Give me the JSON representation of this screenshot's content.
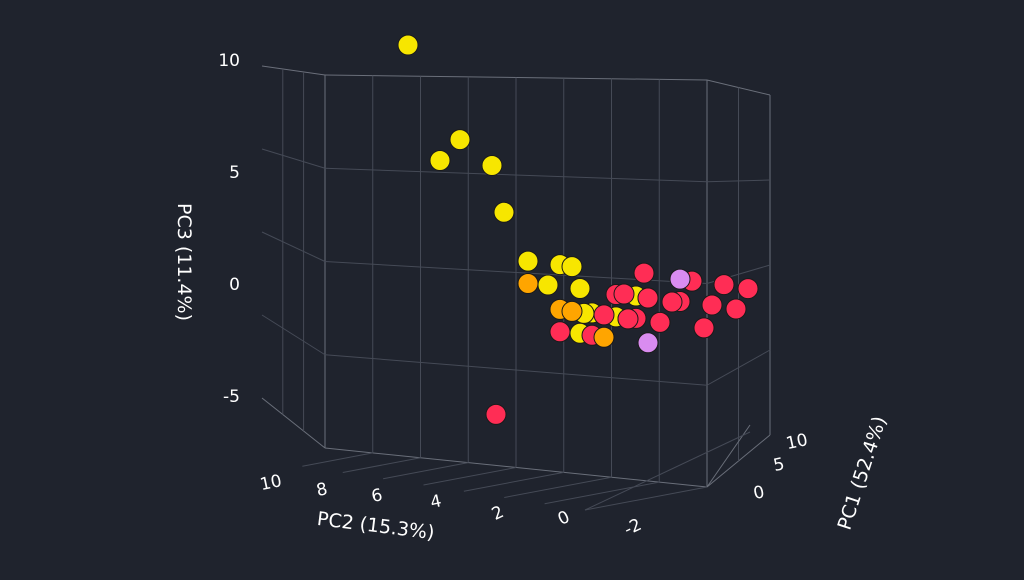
{
  "chart_data": {
    "type": "scatter",
    "subtype": "3d-scatter",
    "background": "#1f232d",
    "grid": true,
    "axes": {
      "x": {
        "label": "PC1 (52.4%)",
        "ticks": [
          "0",
          "5",
          "10"
        ]
      },
      "y": {
        "label": "PC2 (15.3%)",
        "ticks": [
          "10",
          "8",
          "6",
          "4",
          "2",
          "0",
          "-2"
        ]
      },
      "z": {
        "label": "PC3 (11.4%)",
        "ticks": [
          "10",
          "5",
          "0",
          "-5"
        ]
      }
    },
    "series": [
      {
        "color": "#f7e600",
        "points": [
          [
            -6,
            6,
            10
          ],
          [
            -5,
            4,
            6
          ],
          [
            -5,
            5,
            5
          ],
          [
            -4,
            3,
            5
          ],
          [
            -3,
            3,
            3
          ],
          [
            -1,
            3,
            1
          ],
          [
            0,
            2,
            1
          ],
          [
            1,
            2,
            1
          ],
          [
            0,
            1,
            0
          ],
          [
            2,
            0,
            0
          ],
          [
            3,
            0,
            0
          ],
          [
            1,
            1,
            -1
          ],
          [
            0,
            1,
            -2
          ],
          [
            4,
            0,
            0
          ],
          [
            5,
            -1,
            0
          ],
          [
            2,
            2,
            -1
          ],
          [
            3,
            1,
            -1
          ],
          [
            -1,
            2,
            0
          ],
          [
            6,
            -1,
            1
          ],
          [
            4,
            1,
            -1
          ]
        ]
      },
      {
        "color": "#ff2d55",
        "points": [
          [
            -2,
            4,
            -6
          ],
          [
            2,
            -1,
            1
          ],
          [
            -1,
            3,
            0
          ],
          [
            4,
            0,
            0
          ],
          [
            5,
            -1,
            0
          ],
          [
            6,
            -1,
            1
          ],
          [
            7,
            -2,
            1
          ],
          [
            3,
            0,
            -1
          ],
          [
            2,
            1,
            -1
          ],
          [
            1,
            1,
            -2
          ],
          [
            0,
            2,
            -2
          ],
          [
            5,
            0,
            -1
          ],
          [
            8,
            -2,
            0
          ],
          [
            6,
            0,
            0
          ],
          [
            4,
            1,
            -1
          ],
          [
            3,
            1,
            0
          ],
          [
            7,
            -1,
            -1
          ],
          [
            2,
            0,
            0
          ],
          [
            9,
            -2,
            1
          ],
          [
            6,
            -2,
            0
          ]
        ]
      },
      {
        "color": "#ffa500",
        "points": [
          [
            0,
            2,
            -1
          ],
          [
            1,
            2,
            -1
          ],
          [
            2,
            1,
            -2
          ],
          [
            -1,
            3,
            0
          ]
        ]
      },
      {
        "color": "#d98cf0",
        "points": [
          [
            5,
            -1,
            1
          ],
          [
            4,
            0,
            -2
          ]
        ]
      }
    ]
  }
}
